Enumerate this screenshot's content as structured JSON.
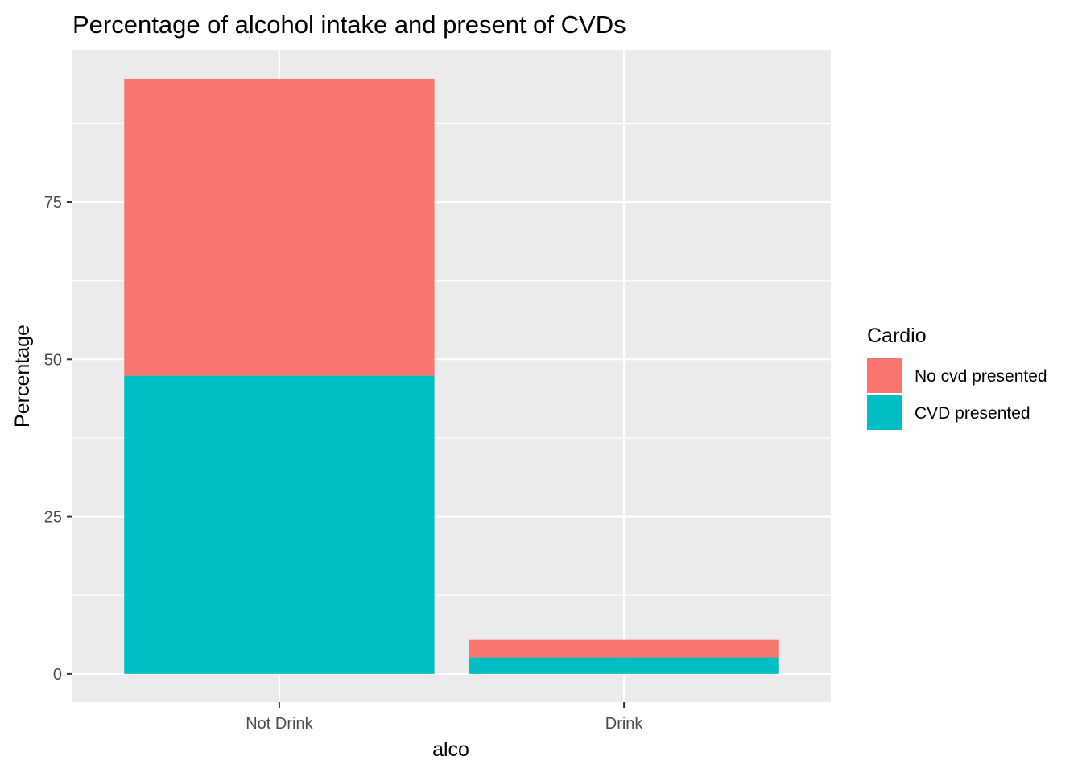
{
  "chart_data": {
    "type": "bar",
    "stacked": true,
    "title": "Percentage of alcohol intake and present of CVDs",
    "xlabel": "alco",
    "ylabel": "Percentage",
    "categories": [
      "Not Drink",
      "Drink"
    ],
    "series": [
      {
        "name": "No cvd presented",
        "values": [
          47.2,
          2.8
        ],
        "color": "#F8766D"
      },
      {
        "name": "CVD presented",
        "values": [
          47.4,
          2.6
        ],
        "color": "#00BFC4"
      }
    ],
    "ylim": [
      -4.5,
      99.2
    ],
    "yticks": [
      0,
      25,
      50,
      75
    ],
    "ytick_labels": [
      "0",
      "25",
      "50",
      "75"
    ],
    "grid": true,
    "panel_color": "#EBEBEB",
    "legend": {
      "title": "Cardio",
      "placement": "right",
      "items": [
        "No cvd presented",
        "CVD presented"
      ]
    }
  }
}
